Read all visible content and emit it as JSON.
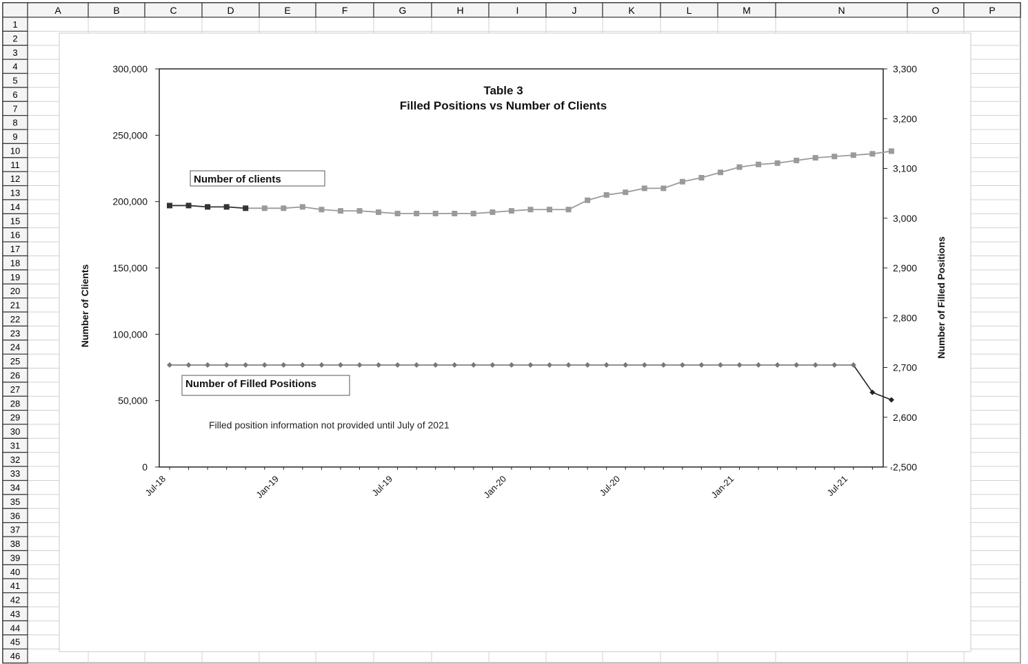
{
  "spreadsheet": {
    "columns": [
      "A",
      "B",
      "C",
      "D",
      "E",
      "F",
      "G",
      "H",
      "I",
      "J",
      "K",
      "L",
      "M",
      "N",
      "O",
      "P"
    ],
    "rows": [
      "1",
      "2",
      "3",
      "4",
      "5",
      "6",
      "7",
      "8",
      "9",
      "10",
      "11",
      "12",
      "13",
      "14",
      "15",
      "16",
      "17",
      "18",
      "19",
      "20",
      "21",
      "22",
      "23",
      "24",
      "25",
      "26",
      "27",
      "28",
      "29",
      "30",
      "31",
      "32",
      "33",
      "34",
      "35",
      "36",
      "37",
      "38",
      "39",
      "40",
      "41",
      "42",
      "43",
      "44",
      "45",
      "46"
    ]
  },
  "chart_data": {
    "type": "line",
    "title": "Table 3",
    "subtitle": "Filled Positions vs Number of Clients",
    "ylabel": "Number of Clients",
    "y2label": "Number of Filled Positions",
    "ylim": [
      0,
      300000
    ],
    "y2lim": [
      2500,
      3300
    ],
    "yticks": [
      "0",
      "50,000",
      "100,000",
      "150,000",
      "200,000",
      "250,000",
      "300,000"
    ],
    "y2ticks": [
      "2,500",
      "2,600",
      "2,700",
      "2,800",
      "2,900",
      "3,000",
      "3,100",
      "3,200",
      "3,300"
    ],
    "xticks": [
      "Jul-18",
      "Jan-19",
      "Jul-19",
      "Jan-20",
      "Jul-20",
      "Jan-21",
      "Jul-21"
    ],
    "grid": false,
    "series": [
      {
        "name": "Number of clients",
        "axis": "left",
        "color": "#9a9a9a",
        "early_color": "#333333",
        "marker": "square",
        "values": [
          197000,
          197000,
          196000,
          196000,
          195000,
          195000,
          195000,
          196000,
          194000,
          193000,
          193000,
          192000,
          191000,
          191000,
          191000,
          191000,
          191000,
          192000,
          193000,
          194000,
          194000,
          194000,
          201000,
          205000,
          207000,
          210000,
          210000,
          215000,
          218000,
          222000,
          226000,
          228000,
          229000,
          231000,
          233000,
          234000,
          235000,
          236000,
          238000
        ]
      },
      {
        "name": "Number of Filled Positions",
        "axis": "right",
        "color": "#777777",
        "end_color": "#222222",
        "marker": "diamond",
        "values": [
          2705,
          2705,
          2705,
          2705,
          2705,
          2705,
          2705,
          2705,
          2705,
          2705,
          2705,
          2705,
          2705,
          2705,
          2705,
          2705,
          2705,
          2705,
          2705,
          2705,
          2705,
          2705,
          2705,
          2705,
          2705,
          2705,
          2705,
          2705,
          2705,
          2705,
          2705,
          2705,
          2705,
          2705,
          2705,
          2705,
          2705,
          2650,
          2635
        ]
      }
    ],
    "annotation": "Filled position information not provided until July of 2021"
  }
}
